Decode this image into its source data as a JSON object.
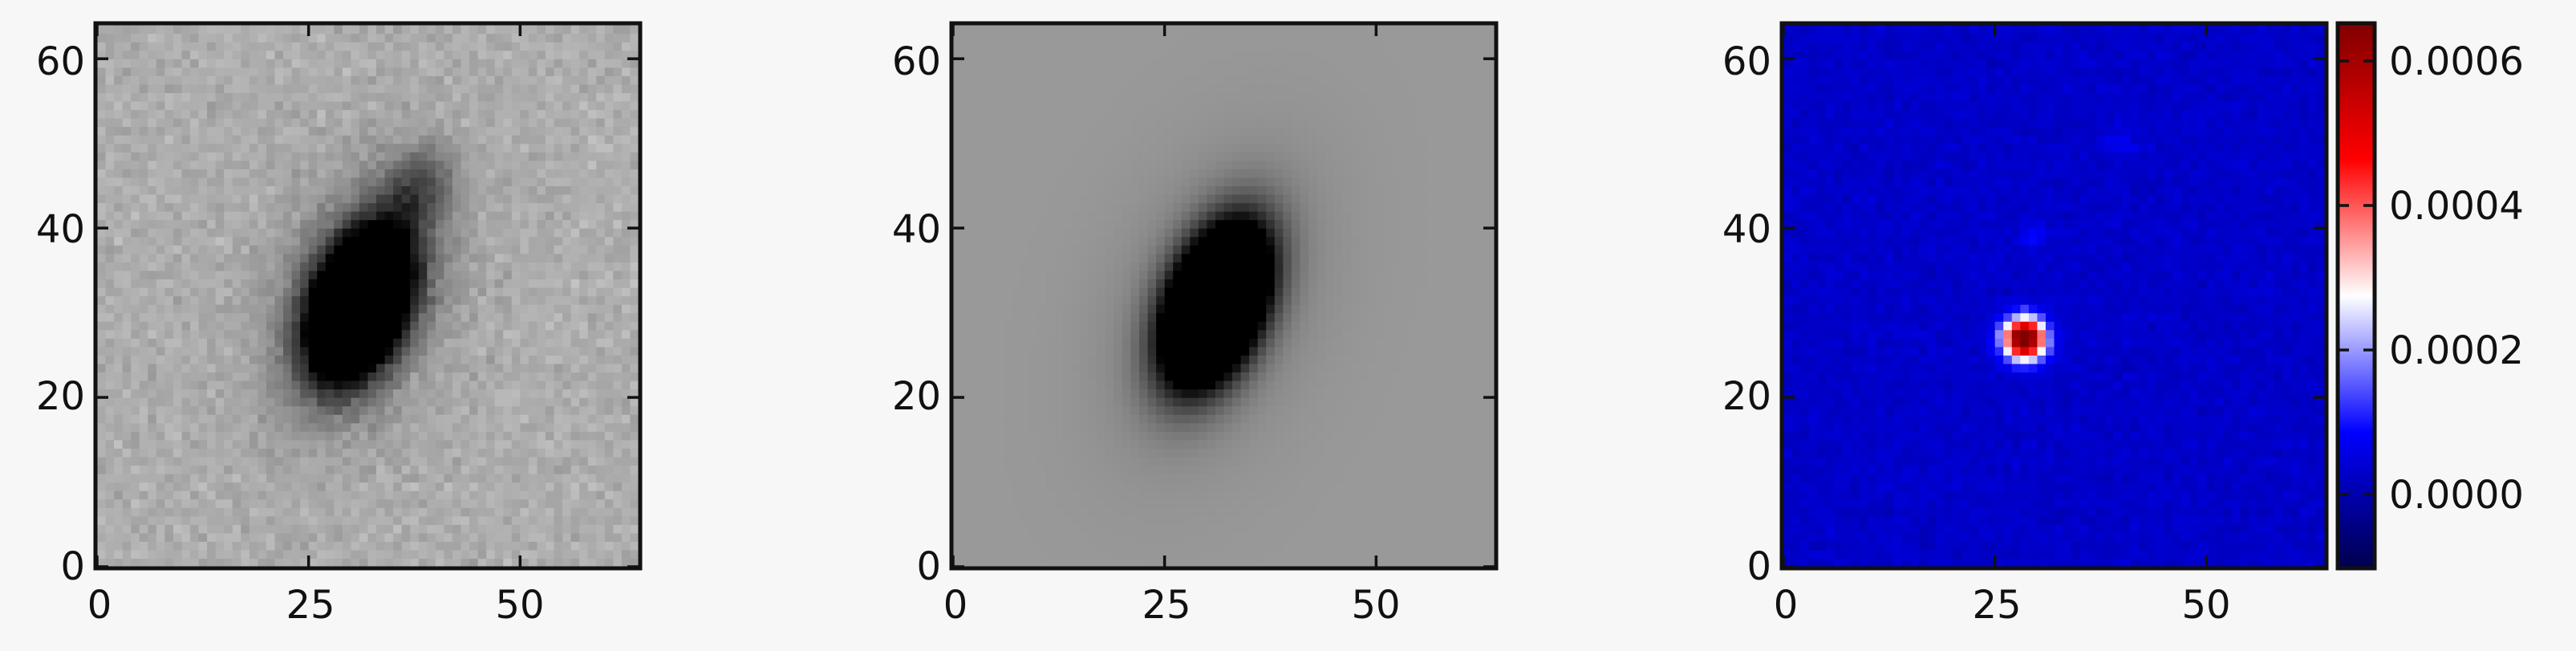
{
  "chart_data": [
    {
      "type": "heatmap",
      "panel": "galaxy-image",
      "colormap": "gray",
      "colormap_stops": [
        "#000000",
        "#ffffff"
      ],
      "value_range": [
        0,
        1
      ],
      "grid_size": [
        64,
        64
      ],
      "xlim": [
        0,
        64
      ],
      "ylim": [
        0,
        64
      ],
      "x_ticks": [
        "0",
        "25",
        "50"
      ],
      "y_ticks": [
        "0",
        "20",
        "40",
        "60"
      ],
      "background_level": 0.68,
      "noise_amplitude": 0.09,
      "features": [
        {
          "name": "core",
          "x": 31,
          "y": 31,
          "sigma_major": 6.2,
          "sigma_minor": 3.6,
          "angle_deg": 68,
          "amplitude": 1.9
        },
        {
          "name": "plume",
          "x": 38,
          "y": 45,
          "sigma_major": 3.5,
          "sigma_minor": 2.6,
          "angle_deg": 60,
          "amplitude": 0.28
        },
        {
          "name": "halo",
          "x": 31,
          "y": 33,
          "sigma_major": 11,
          "sigma_minor": 7,
          "angle_deg": 70,
          "amplitude": 0.18
        }
      ]
    },
    {
      "type": "heatmap",
      "panel": "model-image",
      "colormap": "gray",
      "colormap_stops": [
        "#000000",
        "#ffffff"
      ],
      "value_range": [
        0,
        1
      ],
      "grid_size": [
        64,
        64
      ],
      "xlim": [
        0,
        64
      ],
      "ylim": [
        0,
        64
      ],
      "x_ticks": [
        "0",
        "25",
        "50"
      ],
      "y_ticks": [
        "0",
        "20",
        "40",
        "60"
      ],
      "background_level": 0.6,
      "noise_amplitude": 0,
      "features": [
        {
          "name": "core",
          "x": 31,
          "y": 31,
          "sigma_major": 6.2,
          "sigma_minor": 3.4,
          "angle_deg": 68,
          "amplitude": 2.2
        },
        {
          "name": "halo",
          "x": 31,
          "y": 31,
          "sigma_major": 13,
          "sigma_minor": 8,
          "angle_deg": 68,
          "amplitude": 0.12
        }
      ]
    },
    {
      "type": "heatmap",
      "panel": "residual-image",
      "colormap": "seismic",
      "colormap_stops": [
        "#00004d",
        "#0000ff",
        "#ffffff",
        "#ff0000",
        "#800000"
      ],
      "value_range": [
        -0.0001,
        0.00065
      ],
      "grid_size": [
        64,
        64
      ],
      "xlim": [
        0,
        64
      ],
      "ylim": [
        0,
        64
      ],
      "x_ticks": [
        "0",
        "25",
        "50"
      ],
      "y_ticks": [
        "0",
        "20",
        "40",
        "60"
      ],
      "background_level": 3e-05,
      "noise_amplitude": 2.5e-05,
      "features": [
        {
          "name": "hot-spot",
          "x": 28.5,
          "y": 27,
          "sigma_major": 1.7,
          "sigma_minor": 1.7,
          "angle_deg": 0,
          "amplitude": 0.0007
        },
        {
          "name": "knot",
          "x": 29.5,
          "y": 39,
          "sigma_major": 1.0,
          "sigma_minor": 1.0,
          "angle_deg": 0,
          "amplitude": 8e-05
        },
        {
          "name": "upper-knot",
          "x": 40,
          "y": 50,
          "sigma_major": 1.6,
          "sigma_minor": 1.1,
          "angle_deg": 0,
          "amplitude": 4e-05
        }
      ],
      "colorbar": {
        "ticks": [
          {
            "value": 0.0,
            "label": "0.0000"
          },
          {
            "value": 0.0002,
            "label": "0.0002"
          },
          {
            "value": 0.0004,
            "label": "0.0004"
          },
          {
            "value": 0.0006,
            "label": "0.0006"
          }
        ]
      }
    }
  ]
}
